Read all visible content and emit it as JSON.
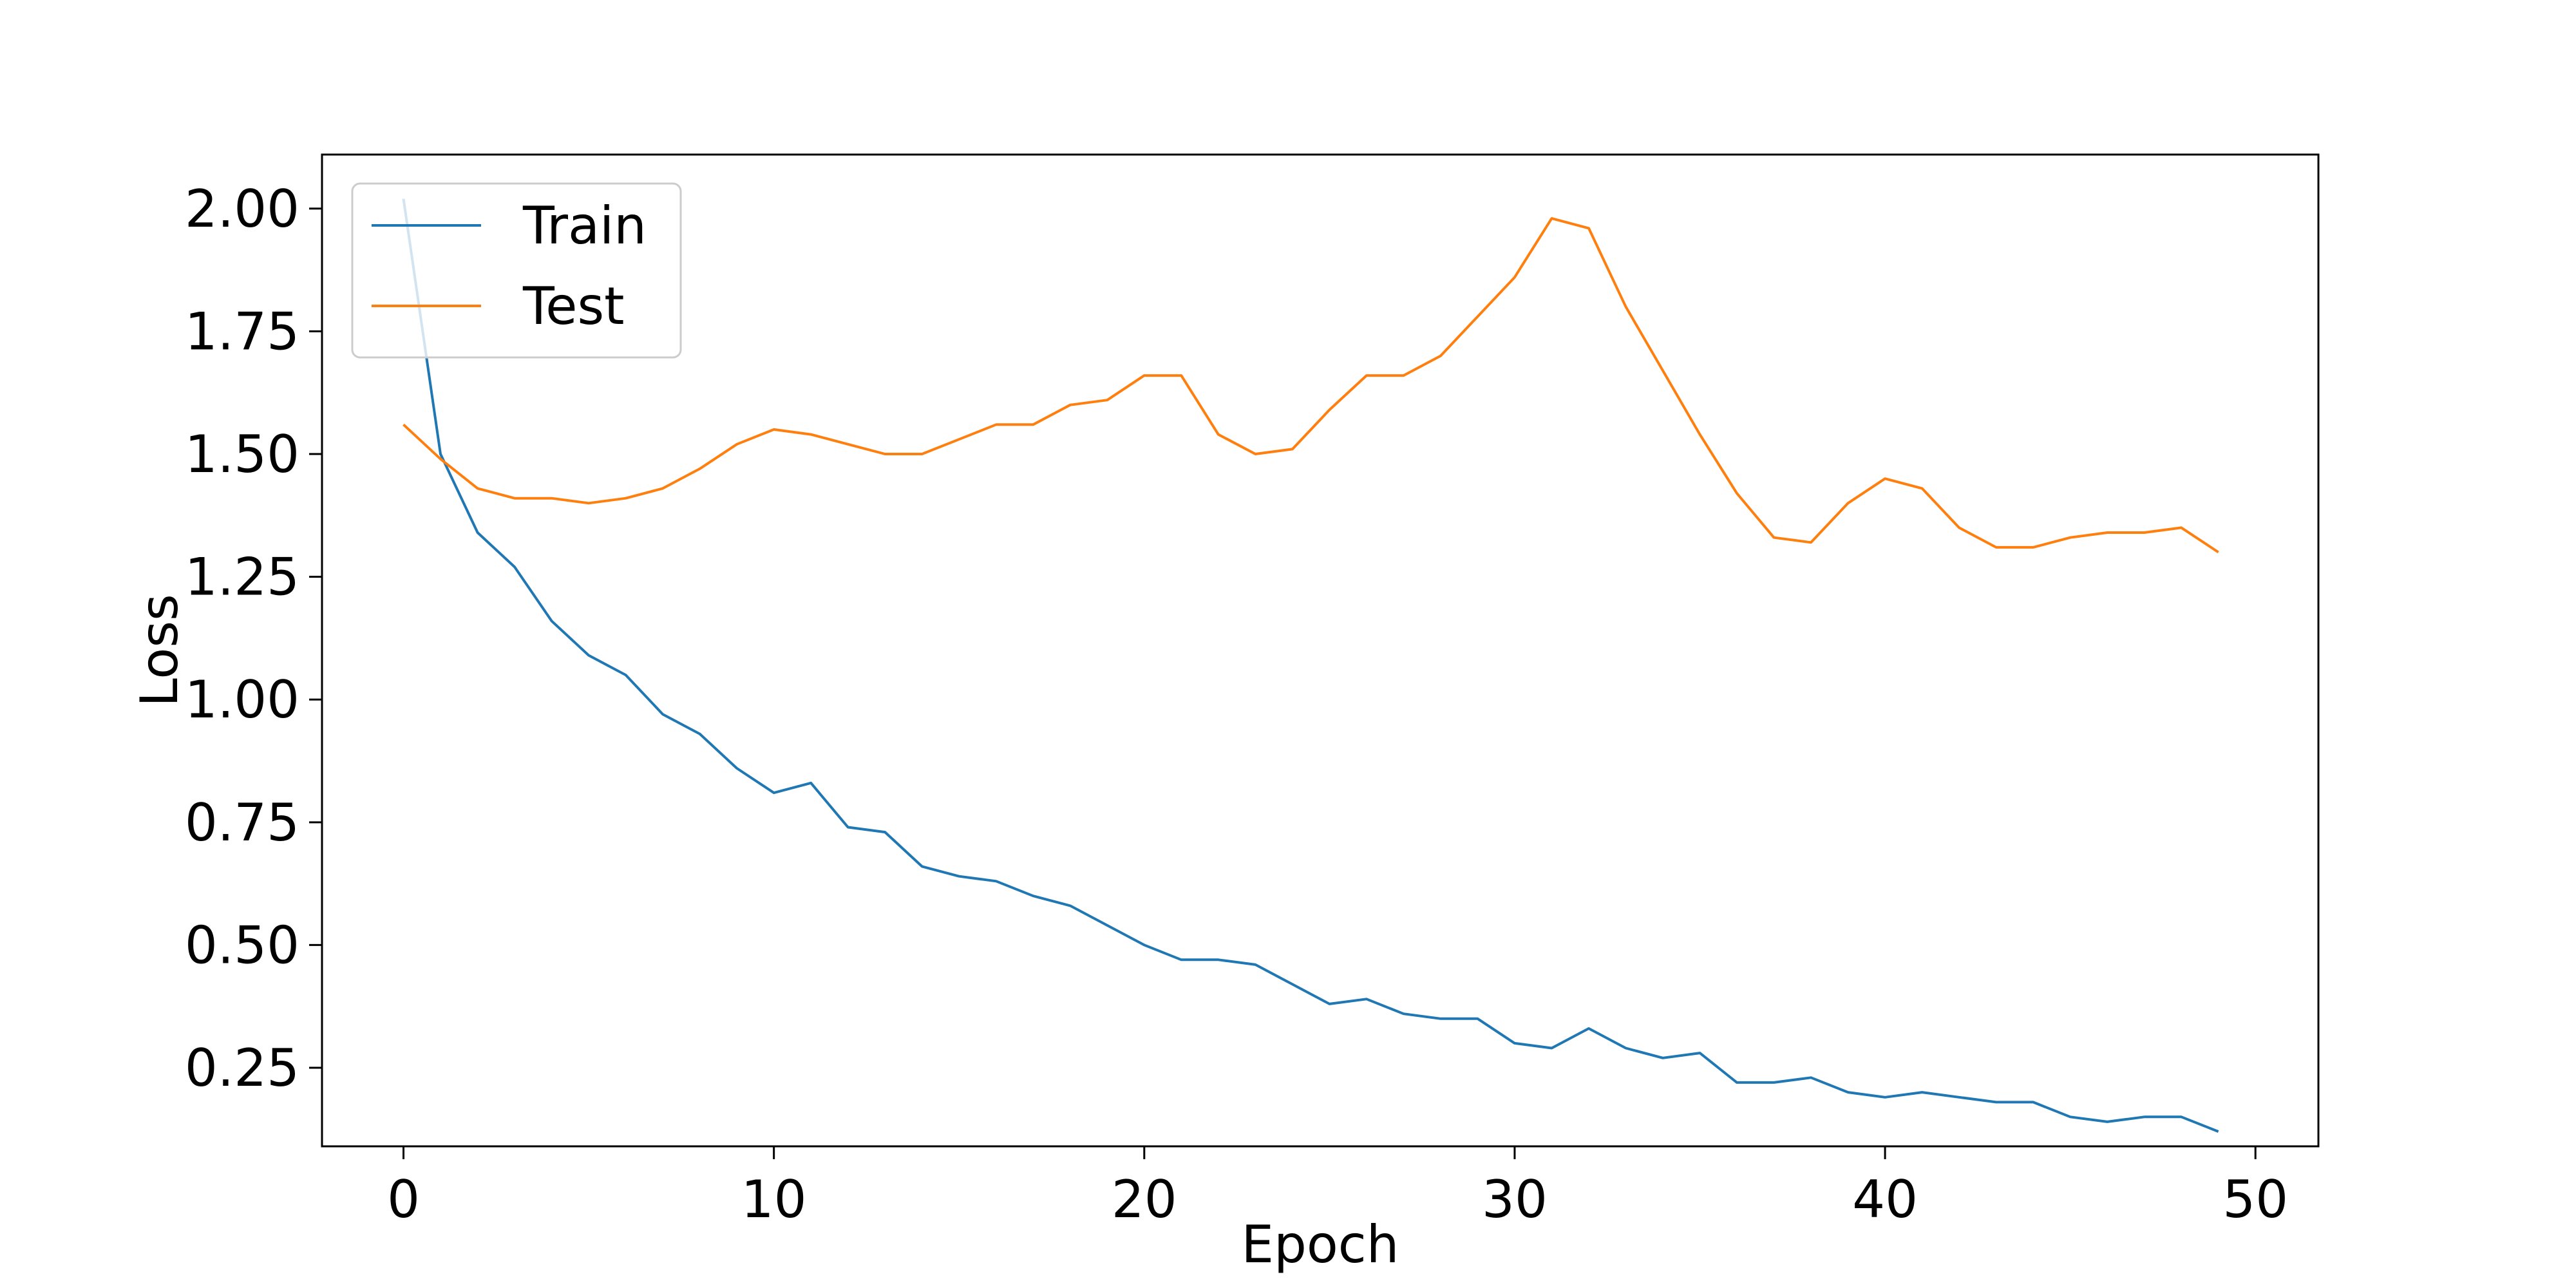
{
  "chart_data": {
    "type": "line",
    "title": "",
    "xlabel": "Epoch",
    "ylabel": "Loss",
    "xlim": [
      -2.2,
      51.7
    ],
    "ylim": [
      0.09,
      2.11
    ],
    "xticks": [
      0,
      10,
      20,
      30,
      40,
      50
    ],
    "xtick_labels": [
      "0",
      "10",
      "20",
      "30",
      "40",
      "50"
    ],
    "yticks": [
      0.25,
      0.5,
      0.75,
      1.0,
      1.25,
      1.5,
      1.75,
      2.0
    ],
    "ytick_labels": [
      "0.25",
      "0.50",
      "0.75",
      "1.00",
      "1.25",
      "1.50",
      "1.75",
      "2.00"
    ],
    "grid": false,
    "legend_position": "top-left",
    "x": [
      0,
      1,
      2,
      3,
      4,
      5,
      6,
      7,
      8,
      9,
      10,
      11,
      12,
      13,
      14,
      15,
      16,
      17,
      18,
      19,
      20,
      21,
      22,
      23,
      24,
      25,
      26,
      27,
      28,
      29,
      30,
      31,
      32,
      33,
      34,
      35,
      36,
      37,
      38,
      39,
      40,
      41,
      42,
      43,
      44,
      45,
      46,
      47,
      48,
      49
    ],
    "series": [
      {
        "name": "Train",
        "color": "#1f77b4",
        "values": [
          2.02,
          1.5,
          1.34,
          1.27,
          1.16,
          1.09,
          1.05,
          0.97,
          0.93,
          0.86,
          0.81,
          0.83,
          0.74,
          0.73,
          0.66,
          0.64,
          0.63,
          0.6,
          0.58,
          0.54,
          0.5,
          0.47,
          0.47,
          0.46,
          0.42,
          0.38,
          0.39,
          0.36,
          0.35,
          0.35,
          0.3,
          0.29,
          0.33,
          0.29,
          0.27,
          0.28,
          0.22,
          0.22,
          0.23,
          0.2,
          0.19,
          0.2,
          0.19,
          0.18,
          0.18,
          0.15,
          0.14,
          0.15,
          0.15,
          0.12
        ]
      },
      {
        "name": "Test",
        "color": "#ff7f0e",
        "values": [
          1.56,
          1.49,
          1.43,
          1.41,
          1.41,
          1.4,
          1.41,
          1.43,
          1.47,
          1.52,
          1.55,
          1.54,
          1.52,
          1.5,
          1.5,
          1.53,
          1.56,
          1.56,
          1.6,
          1.61,
          1.66,
          1.66,
          1.54,
          1.5,
          1.51,
          1.59,
          1.66,
          1.66,
          1.7,
          1.78,
          1.86,
          1.98,
          1.96,
          1.8,
          1.67,
          1.54,
          1.42,
          1.33,
          1.32,
          1.4,
          1.45,
          1.43,
          1.35,
          1.31,
          1.31,
          1.33,
          1.34,
          1.34,
          1.35,
          1.3
        ]
      }
    ]
  }
}
